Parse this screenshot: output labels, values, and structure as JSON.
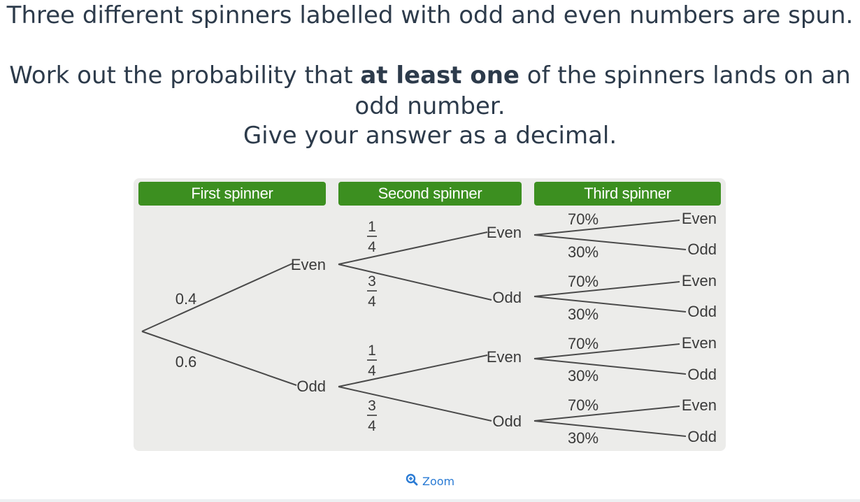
{
  "question": {
    "line1": "Three different spinners labelled with odd and even numbers are spun.",
    "line2_pre": "Work out the probability that ",
    "line2_bold": "at least one",
    "line2_post": " of the spinners lands on an",
    "line3": "odd number.",
    "line4": "Give your answer as a decimal."
  },
  "diagram": {
    "headers": {
      "first": "First spinner",
      "second": "Second spinner",
      "third": "Third spinner"
    },
    "first_probs": {
      "even": "0.4",
      "odd": "0.6"
    },
    "outcome_even": "Even",
    "outcome_odd": "Odd",
    "second_frac": {
      "even_num": "1",
      "odd_num": "3",
      "den": "4"
    },
    "third_probs": {
      "even": "70%",
      "odd": "30%"
    },
    "colors": {
      "header_green": "#3c8f20",
      "panel_bg": "#ececea",
      "line": "#4a4a4a"
    }
  },
  "zoom": {
    "label": "Zoom",
    "icon": "zoom-in-icon"
  }
}
